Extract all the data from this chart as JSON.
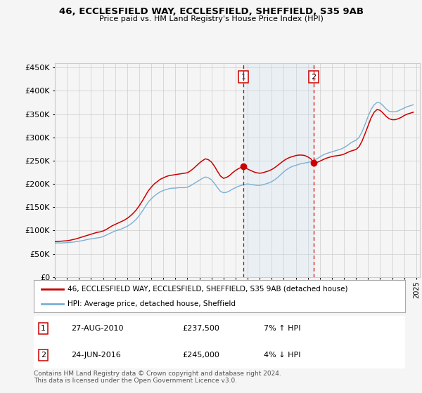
{
  "title": "46, ECCLESFIELD WAY, ECCLESFIELD, SHEFFIELD, S35 9AB",
  "subtitle": "Price paid vs. HM Land Registry's House Price Index (HPI)",
  "ylabel_values": [
    0,
    50000,
    100000,
    150000,
    200000,
    250000,
    300000,
    350000,
    400000,
    450000
  ],
  "ylim": [
    0,
    460000
  ],
  "xlim_start": 1995.0,
  "xlim_end": 2025.3,
  "red_line_color": "#cc0000",
  "blue_line_color": "#7ab0d4",
  "shade_color": "#cce0f0",
  "vline_color": "#cc0000",
  "marker_color": "#cc0000",
  "grid_color": "#cccccc",
  "bg_color": "#f5f5f5",
  "legend_border_color": "#aaaaaa",
  "box_border_color": "#cc0000",
  "transactions": [
    {
      "label": "1",
      "date": "27-AUG-2010",
      "price": "£237,500",
      "hpi_info": "7% ↑ HPI",
      "x_year": 2010.66
    },
    {
      "label": "2",
      "date": "24-JUN-2016",
      "price": "£245,000",
      "hpi_info": "4% ↓ HPI",
      "x_year": 2016.48
    }
  ],
  "legend_entries": [
    {
      "label": "46, ECCLESFIELD WAY, ECCLESFIELD, SHEFFIELD, S35 9AB (detached house)",
      "color": "#cc0000"
    },
    {
      "label": "HPI: Average price, detached house, Sheffield",
      "color": "#7ab0d4"
    }
  ],
  "copyright_text": "Contains HM Land Registry data © Crown copyright and database right 2024.\nThis data is licensed under the Open Government Licence v3.0.",
  "hpi_data_x": [
    1995.0,
    1995.25,
    1995.5,
    1995.75,
    1996.0,
    1996.25,
    1996.5,
    1996.75,
    1997.0,
    1997.25,
    1997.5,
    1997.75,
    1998.0,
    1998.25,
    1998.5,
    1998.75,
    1999.0,
    1999.25,
    1999.5,
    1999.75,
    2000.0,
    2000.25,
    2000.5,
    2000.75,
    2001.0,
    2001.25,
    2001.5,
    2001.75,
    2002.0,
    2002.25,
    2002.5,
    2002.75,
    2003.0,
    2003.25,
    2003.5,
    2003.75,
    2004.0,
    2004.25,
    2004.5,
    2004.75,
    2005.0,
    2005.25,
    2005.5,
    2005.75,
    2006.0,
    2006.25,
    2006.5,
    2006.75,
    2007.0,
    2007.25,
    2007.5,
    2007.75,
    2008.0,
    2008.25,
    2008.5,
    2008.75,
    2009.0,
    2009.25,
    2009.5,
    2009.75,
    2010.0,
    2010.25,
    2010.5,
    2010.75,
    2011.0,
    2011.25,
    2011.5,
    2011.75,
    2012.0,
    2012.25,
    2012.5,
    2012.75,
    2013.0,
    2013.25,
    2013.5,
    2013.75,
    2014.0,
    2014.25,
    2014.5,
    2014.75,
    2015.0,
    2015.25,
    2015.5,
    2015.75,
    2016.0,
    2016.25,
    2016.5,
    2016.75,
    2017.0,
    2017.25,
    2017.5,
    2017.75,
    2018.0,
    2018.25,
    2018.5,
    2018.75,
    2019.0,
    2019.25,
    2019.5,
    2019.75,
    2020.0,
    2020.25,
    2020.5,
    2020.75,
    2021.0,
    2021.25,
    2021.5,
    2021.75,
    2022.0,
    2022.25,
    2022.5,
    2022.75,
    2023.0,
    2023.25,
    2023.5,
    2023.75,
    2024.0,
    2024.25,
    2024.5,
    2024.75
  ],
  "hpi_data_y": [
    73000,
    73500,
    73000,
    73500,
    74000,
    74500,
    75000,
    76000,
    77000,
    78000,
    79500,
    81000,
    82000,
    83000,
    84000,
    85000,
    87000,
    90000,
    93000,
    96000,
    99000,
    101000,
    103000,
    106000,
    109000,
    113000,
    118000,
    124000,
    132000,
    141000,
    151000,
    161000,
    168000,
    174000,
    179000,
    183000,
    186000,
    188000,
    190000,
    191000,
    191000,
    192000,
    192000,
    192000,
    193000,
    196000,
    200000,
    204000,
    208000,
    212000,
    215000,
    213000,
    209000,
    201000,
    192000,
    184000,
    181000,
    182000,
    185000,
    189000,
    192000,
    195000,
    197000,
    199000,
    200000,
    199000,
    198000,
    197000,
    197000,
    198000,
    200000,
    202000,
    205000,
    209000,
    214000,
    220000,
    226000,
    231000,
    235000,
    238000,
    240000,
    242000,
    244000,
    245000,
    246000,
    248000,
    251000,
    254000,
    258000,
    262000,
    265000,
    267000,
    269000,
    271000,
    273000,
    275000,
    278000,
    282000,
    287000,
    291000,
    294000,
    300000,
    312000,
    328000,
    345000,
    360000,
    370000,
    375000,
    374000,
    368000,
    361000,
    356000,
    355000,
    355000,
    357000,
    360000,
    363000,
    366000,
    368000,
    370000
  ],
  "red_data_x": [
    1995.0,
    1995.25,
    1995.5,
    1995.75,
    1996.0,
    1996.25,
    1996.5,
    1996.75,
    1997.0,
    1997.25,
    1997.5,
    1997.75,
    1998.0,
    1998.25,
    1998.5,
    1998.75,
    1999.0,
    1999.25,
    1999.5,
    1999.75,
    2000.0,
    2000.25,
    2000.5,
    2000.75,
    2001.0,
    2001.25,
    2001.5,
    2001.75,
    2002.0,
    2002.25,
    2002.5,
    2002.75,
    2003.0,
    2003.25,
    2003.5,
    2003.75,
    2004.0,
    2004.25,
    2004.5,
    2004.75,
    2005.0,
    2005.25,
    2005.5,
    2005.75,
    2006.0,
    2006.25,
    2006.5,
    2006.75,
    2007.0,
    2007.25,
    2007.5,
    2007.75,
    2008.0,
    2008.25,
    2008.5,
    2008.75,
    2009.0,
    2009.25,
    2009.5,
    2009.75,
    2010.0,
    2010.25,
    2010.5,
    2010.66,
    2010.75,
    2011.0,
    2011.25,
    2011.5,
    2011.75,
    2012.0,
    2012.25,
    2012.5,
    2012.75,
    2013.0,
    2013.25,
    2013.5,
    2013.75,
    2014.0,
    2014.25,
    2014.5,
    2014.75,
    2015.0,
    2015.25,
    2015.5,
    2015.75,
    2016.0,
    2016.25,
    2016.48,
    2016.75,
    2017.0,
    2017.25,
    2017.5,
    2017.75,
    2018.0,
    2018.25,
    2018.5,
    2018.75,
    2019.0,
    2019.25,
    2019.5,
    2019.75,
    2020.0,
    2020.25,
    2020.5,
    2020.75,
    2021.0,
    2021.25,
    2021.5,
    2021.75,
    2022.0,
    2022.25,
    2022.5,
    2022.75,
    2023.0,
    2023.25,
    2023.5,
    2023.75,
    2024.0,
    2024.25,
    2024.5,
    2024.75
  ],
  "red_data_y": [
    76000,
    76500,
    77000,
    77500,
    78000,
    79000,
    80500,
    82000,
    84000,
    86000,
    88000,
    90000,
    92000,
    94000,
    96000,
    97000,
    99000,
    102000,
    106000,
    110000,
    113000,
    116000,
    119000,
    122000,
    126000,
    131000,
    137000,
    144000,
    153000,
    163000,
    174000,
    185000,
    193000,
    200000,
    205000,
    210000,
    213000,
    216000,
    218000,
    219000,
    220000,
    221000,
    222000,
    223000,
    224000,
    228000,
    233000,
    239000,
    245000,
    250000,
    254000,
    252000,
    247000,
    238000,
    227000,
    217000,
    212000,
    214000,
    218000,
    224000,
    229000,
    233000,
    236000,
    237500,
    236000,
    232000,
    229000,
    226000,
    224000,
    223000,
    224000,
    226000,
    228000,
    231000,
    235000,
    240000,
    245000,
    250000,
    254000,
    257000,
    259000,
    261000,
    262000,
    262000,
    261000,
    258000,
    254000,
    245000,
    246000,
    249000,
    252000,
    255000,
    257000,
    259000,
    260000,
    261000,
    262000,
    264000,
    267000,
    270000,
    272000,
    274000,
    280000,
    292000,
    308000,
    325000,
    342000,
    354000,
    360000,
    358000,
    352000,
    345000,
    340000,
    338000,
    338000,
    340000,
    343000,
    347000,
    350000,
    352000,
    354000
  ]
}
